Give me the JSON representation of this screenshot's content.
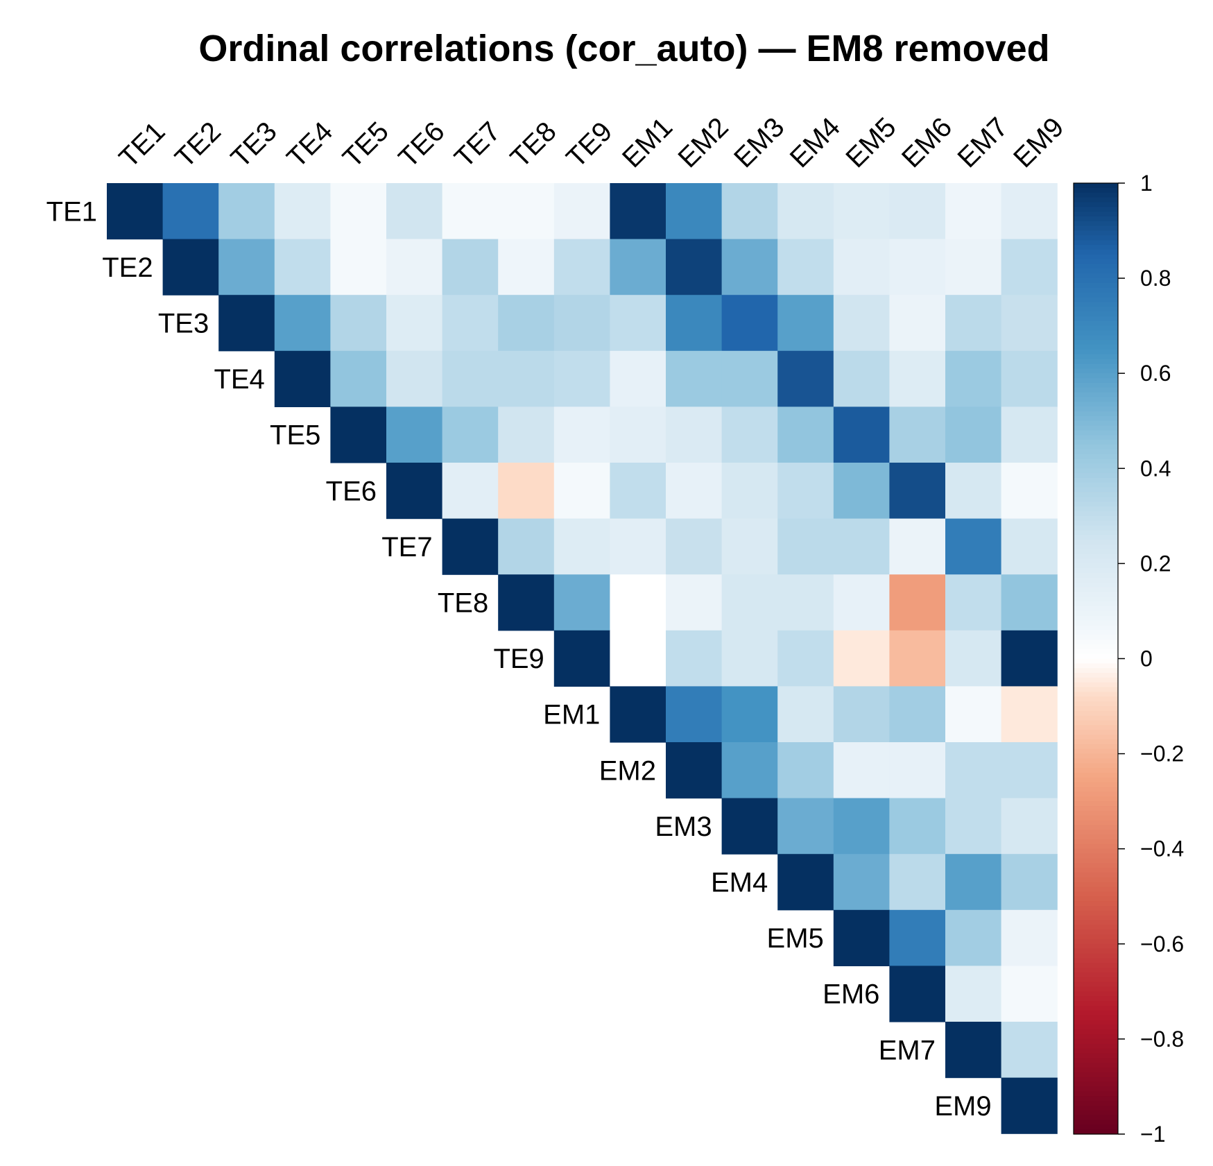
{
  "chart_data": {
    "type": "heatmap",
    "title": "Ordinal correlations (cor_auto) — EM8 removed",
    "layout": "upper-triangle",
    "variables": [
      "TE1",
      "TE2",
      "TE3",
      "TE4",
      "TE5",
      "TE6",
      "TE7",
      "TE8",
      "TE9",
      "EM1",
      "EM2",
      "EM3",
      "EM4",
      "EM5",
      "EM6",
      "EM7",
      "EM9"
    ],
    "matrix": [
      [
        1,
        0.8,
        0.4,
        0.18,
        0.05,
        0.25,
        0.05,
        0.05,
        0.1,
        0.98,
        0.7,
        0.35,
        0.22,
        0.18,
        0.2,
        0.08,
        0.15
      ],
      [
        null,
        1,
        0.55,
        0.3,
        0.05,
        0.1,
        0.35,
        0.08,
        0.3,
        0.55,
        0.95,
        0.55,
        0.3,
        0.15,
        0.12,
        0.1,
        0.3
      ],
      [
        null,
        null,
        1,
        0.6,
        0.35,
        0.18,
        0.3,
        0.38,
        0.35,
        0.3,
        0.7,
        0.85,
        0.6,
        0.25,
        0.1,
        0.32,
        0.28
      ],
      [
        null,
        null,
        null,
        1,
        0.45,
        0.25,
        0.32,
        0.32,
        0.3,
        0.12,
        0.42,
        0.42,
        0.9,
        0.32,
        0.18,
        0.42,
        0.32
      ],
      [
        null,
        null,
        null,
        null,
        1,
        0.6,
        0.42,
        0.25,
        0.12,
        0.15,
        0.2,
        0.3,
        0.45,
        0.88,
        0.38,
        0.45,
        0.22
      ],
      [
        null,
        null,
        null,
        null,
        null,
        1,
        0.15,
        -0.08,
        0.05,
        0.3,
        0.12,
        0.22,
        0.3,
        0.5,
        0.92,
        0.22,
        0.05
      ],
      [
        null,
        null,
        null,
        null,
        null,
        null,
        1,
        0.35,
        0.18,
        0.15,
        0.28,
        0.2,
        0.32,
        0.32,
        0.1,
        0.75,
        0.22
      ],
      [
        null,
        null,
        null,
        null,
        null,
        null,
        null,
        1,
        0.55,
        0.0,
        0.1,
        0.22,
        0.22,
        0.12,
        -0.28,
        0.3,
        0.45
      ],
      [
        null,
        null,
        null,
        null,
        null,
        null,
        null,
        null,
        1,
        0.0,
        0.3,
        0.22,
        0.3,
        -0.05,
        -0.18,
        0.22,
        1
      ],
      [
        null,
        null,
        null,
        null,
        null,
        null,
        null,
        null,
        null,
        1,
        0.75,
        0.65,
        0.22,
        0.35,
        0.4,
        0.05,
        -0.05
      ],
      [
        null,
        null,
        null,
        null,
        null,
        null,
        null,
        null,
        null,
        null,
        1,
        0.6,
        0.4,
        0.12,
        0.12,
        0.3,
        0.3
      ],
      [
        null,
        null,
        null,
        null,
        null,
        null,
        null,
        null,
        null,
        null,
        null,
        1,
        0.55,
        0.6,
        0.42,
        0.3,
        0.22
      ],
      [
        null,
        null,
        null,
        null,
        null,
        null,
        null,
        null,
        null,
        null,
        null,
        null,
        1,
        0.55,
        0.32,
        0.6,
        0.38
      ],
      [
        null,
        null,
        null,
        null,
        null,
        null,
        null,
        null,
        null,
        null,
        null,
        null,
        null,
        1,
        0.75,
        0.4,
        0.1
      ],
      [
        null,
        null,
        null,
        null,
        null,
        null,
        null,
        null,
        null,
        null,
        null,
        null,
        null,
        null,
        1,
        0.18,
        0.05
      ],
      [
        null,
        null,
        null,
        null,
        null,
        null,
        null,
        null,
        null,
        null,
        null,
        null,
        null,
        null,
        null,
        1,
        0.3
      ],
      [
        null,
        null,
        null,
        null,
        null,
        null,
        null,
        null,
        null,
        null,
        null,
        null,
        null,
        null,
        null,
        null,
        1
      ]
    ],
    "color_scale": {
      "min": -1,
      "max": 1,
      "ticks": [
        1,
        0.8,
        0.6,
        0.4,
        0.2,
        0,
        -0.2,
        -0.4,
        -0.6,
        -0.8,
        -1
      ],
      "tick_labels": [
        "1",
        "0.8",
        "0.6",
        "0.4",
        "0.2",
        "0",
        "−0.2",
        "−0.4",
        "−0.6",
        "−0.8",
        "−1"
      ],
      "stops": [
        {
          "v": -1,
          "color": "#67001f"
        },
        {
          "v": -0.75,
          "color": "#b2182b"
        },
        {
          "v": -0.5,
          "color": "#d6604d"
        },
        {
          "v": -0.25,
          "color": "#f4a582"
        },
        {
          "v": -0.08,
          "color": "#fddbc7"
        },
        {
          "v": 0,
          "color": "#ffffff"
        },
        {
          "v": 0.08,
          "color": "#eef5fa"
        },
        {
          "v": 0.25,
          "color": "#d1e5f0"
        },
        {
          "v": 0.45,
          "color": "#92c5de"
        },
        {
          "v": 0.65,
          "color": "#4393c3"
        },
        {
          "v": 0.85,
          "color": "#2166ac"
        },
        {
          "v": 1,
          "color": "#053061"
        }
      ]
    },
    "legend_position": "right"
  }
}
